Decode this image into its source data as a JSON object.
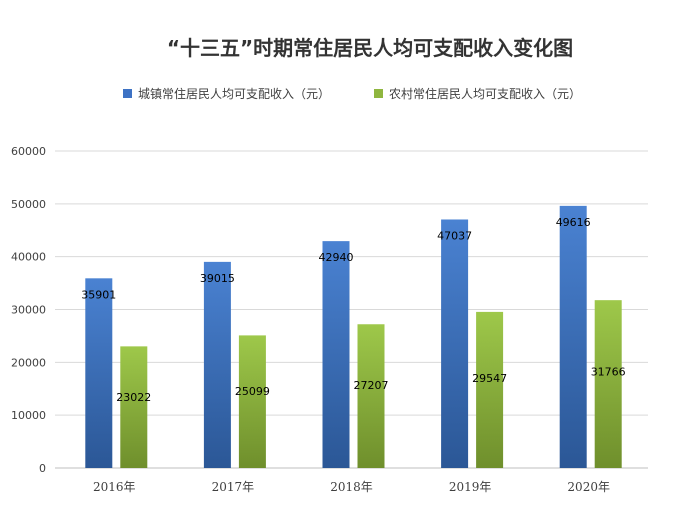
{
  "chart_data": {
    "type": "bar",
    "title": "“十三五”时期常住居民人均可支配收入变化图",
    "categories": [
      "2016年",
      "2017年",
      "2018年",
      "2019年",
      "2020年"
    ],
    "series": [
      {
        "name": "城镇常住居民人均可支配收入（元）",
        "values": [
          35901,
          39015,
          42940,
          47037,
          49616
        ],
        "color": "#3d72c4"
      },
      {
        "name": "农村常住居民人均可支配收入（元）",
        "values": [
          23022,
          25099,
          27207,
          29547,
          31766
        ],
        "color": "#8fb63f"
      }
    ],
    "ylim": [
      0,
      60000
    ],
    "yticks": [
      "0",
      "10000",
      "20000",
      "30000",
      "40000",
      "50000",
      "60000"
    ],
    "xlabel": "",
    "ylabel": "",
    "legend": "top-center",
    "grid": true
  }
}
